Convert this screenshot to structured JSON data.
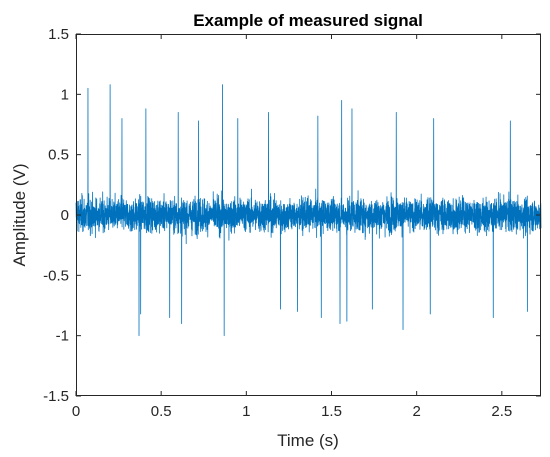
{
  "chart_data": {
    "type": "line",
    "title": "Example of measured signal",
    "xlabel": "Time (s)",
    "ylabel": "Amplitude (V)",
    "xlim": [
      0,
      2.73
    ],
    "ylim": [
      -1.5,
      1.5
    ],
    "x_ticks": [
      0,
      0.5,
      1,
      1.5,
      2,
      2.5
    ],
    "x_tick_labels": [
      "0",
      "0.5",
      "1",
      "1.5",
      "2",
      "2.5"
    ],
    "y_ticks": [
      -1.5,
      -1,
      -0.5,
      0,
      0.5,
      1,
      1.5
    ],
    "y_tick_labels": [
      "-1.5",
      "-1",
      "-0.5",
      "0",
      "0.5",
      "1",
      "1.5"
    ],
    "grid": false,
    "series": [
      {
        "color": "#0072bd",
        "x_start": 0,
        "x_end": 2.73,
        "description_level": "dense noise envelope approximately ±0.4 with spikes",
        "envelope_upper": [
          0.62,
          0.55,
          0.58,
          0.5,
          0.6,
          0.55,
          0.52,
          0.58,
          0.5,
          0.55,
          0.6,
          0.52,
          0.5,
          0.55,
          0.48,
          0.58,
          0.55,
          0.6,
          0.5,
          0.52,
          0.58,
          0.55,
          0.5,
          0.6,
          0.52,
          0.55
        ],
        "envelope_lower": [
          -0.55,
          -0.6,
          -0.5,
          -0.58,
          -0.55,
          -0.5,
          -0.62,
          -0.55,
          -0.58,
          -0.5,
          -0.55,
          -0.6,
          -0.52,
          -0.55,
          -0.5,
          -0.58,
          -0.62,
          -0.55,
          -0.5,
          -0.55,
          -0.6,
          -0.52,
          -0.55,
          -0.5,
          -0.58,
          -0.55
        ],
        "spikes": [
          {
            "x": 0.07,
            "y": 1.05
          },
          {
            "x": 0.2,
            "y": 1.08
          },
          {
            "x": 0.27,
            "y": 0.8
          },
          {
            "x": 0.41,
            "y": 0.88
          },
          {
            "x": 0.6,
            "y": 0.85
          },
          {
            "x": 0.72,
            "y": 0.78
          },
          {
            "x": 0.86,
            "y": 1.08
          },
          {
            "x": 0.95,
            "y": 0.8
          },
          {
            "x": 1.13,
            "y": 0.85
          },
          {
            "x": 1.42,
            "y": 0.82
          },
          {
            "x": 1.56,
            "y": 0.95
          },
          {
            "x": 1.62,
            "y": 0.88
          },
          {
            "x": 1.88,
            "y": 0.85
          },
          {
            "x": 2.1,
            "y": 0.8
          },
          {
            "x": 2.55,
            "y": 0.78
          },
          {
            "x": 0.38,
            "y": -0.82
          },
          {
            "x": 0.37,
            "y": -1.0
          },
          {
            "x": 0.55,
            "y": -0.85
          },
          {
            "x": 0.87,
            "y": -1.0
          },
          {
            "x": 0.62,
            "y": -0.9
          },
          {
            "x": 1.2,
            "y": -0.78
          },
          {
            "x": 1.3,
            "y": -0.8
          },
          {
            "x": 1.44,
            "y": -0.85
          },
          {
            "x": 1.55,
            "y": -0.9
          },
          {
            "x": 1.59,
            "y": -0.88
          },
          {
            "x": 1.92,
            "y": -0.95
          },
          {
            "x": 2.08,
            "y": -0.82
          },
          {
            "x": 2.45,
            "y": -0.85
          },
          {
            "x": 2.65,
            "y": -0.8
          },
          {
            "x": 1.74,
            "y": -0.78
          }
        ]
      }
    ]
  }
}
